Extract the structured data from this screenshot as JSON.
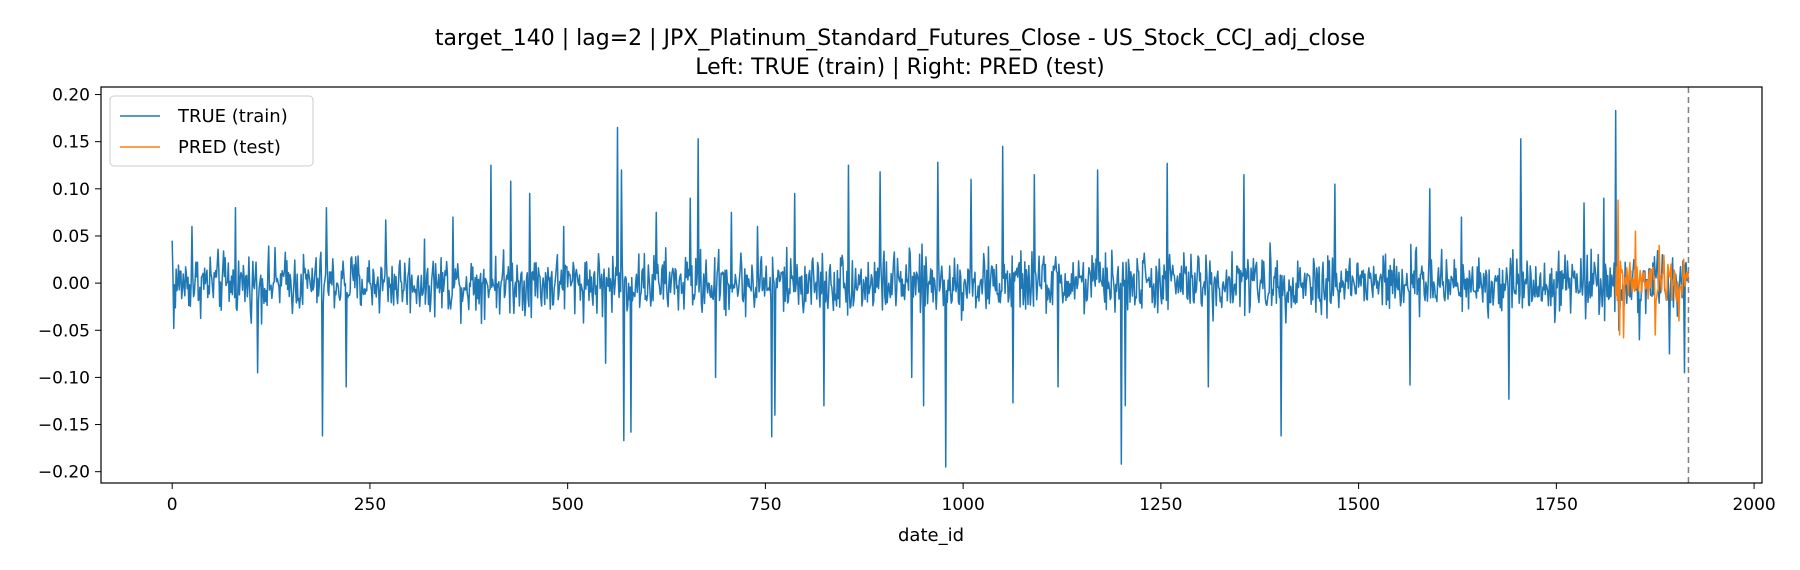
{
  "chart_data": {
    "type": "line",
    "title": "target_140 | lag=2 | JPX_Platinum_Standard_Futures_Close - US_Stock_CCJ_adj_close",
    "subtitle": "Left: TRUE (train) | Right: PRED (test)",
    "xlabel": "date_id",
    "ylabel": "",
    "xlim": [
      -90,
      2010
    ],
    "ylim": [
      -0.212,
      0.208
    ],
    "x_ticks": [
      0,
      250,
      500,
      750,
      1000,
      1250,
      1500,
      1750,
      2000
    ],
    "x_tick_labels": [
      "0",
      "250",
      "500",
      "750",
      "1000",
      "1250",
      "1500",
      "1750",
      "2000"
    ],
    "y_ticks": [
      0.2,
      0.15,
      0.1,
      0.05,
      0.0,
      -0.05,
      -0.1,
      -0.15,
      -0.2
    ],
    "y_tick_labels": [
      "0.20",
      "0.15",
      "0.10",
      "0.05",
      "0.00",
      "−0.05",
      "−0.10",
      "−0.15",
      "−0.20"
    ],
    "grid": false,
    "legend_position": "top-left",
    "vline": {
      "x": 1917,
      "style": "dashed",
      "color": "#808080"
    },
    "series": [
      {
        "name": "TRUE (train)",
        "color": "#1f77b4",
        "x_range": [
          0,
          1917
        ],
        "noise_amplitude": 0.03,
        "spikes": [
          [
            0,
            0.045
          ],
          [
            2,
            -0.048
          ],
          [
            25,
            0.06
          ],
          [
            80,
            0.08
          ],
          [
            108,
            -0.095
          ],
          [
            190,
            -0.162
          ],
          [
            195,
            0.08
          ],
          [
            220,
            -0.11
          ],
          [
            270,
            0.067
          ],
          [
            355,
            0.07
          ],
          [
            403,
            0.125
          ],
          [
            428,
            0.108
          ],
          [
            452,
            0.095
          ],
          [
            495,
            0.06
          ],
          [
            548,
            -0.085
          ],
          [
            563,
            0.165
          ],
          [
            568,
            0.12
          ],
          [
            571,
            -0.167
          ],
          [
            580,
            -0.158
          ],
          [
            612,
            0.075
          ],
          [
            655,
            0.09
          ],
          [
            665,
            0.153
          ],
          [
            687,
            -0.1
          ],
          [
            707,
            0.075
          ],
          [
            740,
            0.06
          ],
          [
            758,
            -0.163
          ],
          [
            762,
            -0.14
          ],
          [
            787,
            0.095
          ],
          [
            824,
            -0.13
          ],
          [
            855,
            0.125
          ],
          [
            895,
            0.118
          ],
          [
            935,
            -0.1
          ],
          [
            950,
            -0.13
          ],
          [
            968,
            0.128
          ],
          [
            978,
            -0.195
          ],
          [
            1010,
            0.11
          ],
          [
            1050,
            0.145
          ],
          [
            1063,
            -0.127
          ],
          [
            1090,
            0.115
          ],
          [
            1120,
            -0.11
          ],
          [
            1170,
            0.12
          ],
          [
            1200,
            -0.192
          ],
          [
            1205,
            -0.13
          ],
          [
            1258,
            0.127
          ],
          [
            1310,
            -0.11
          ],
          [
            1355,
            0.115
          ],
          [
            1402,
            -0.162
          ],
          [
            1470,
            0.105
          ],
          [
            1565,
            -0.108
          ],
          [
            1590,
            0.1
          ],
          [
            1630,
            0.07
          ],
          [
            1690,
            -0.123
          ],
          [
            1705,
            0.153
          ],
          [
            1785,
            0.085
          ],
          [
            1810,
            0.09
          ],
          [
            1825,
            0.183
          ],
          [
            1829,
            -0.05
          ],
          [
            1855,
            -0.06
          ],
          [
            1893,
            -0.075
          ],
          [
            1912,
            -0.095
          ]
        ]
      },
      {
        "name": "PRED (test)",
        "color": "#ff7f0e",
        "x_range": [
          1825,
          1917
        ],
        "noise_amplitude": 0.022,
        "spikes": [
          [
            1828,
            0.088
          ],
          [
            1830,
            -0.055
          ],
          [
            1835,
            -0.058
          ],
          [
            1850,
            0.055
          ],
          [
            1875,
            -0.055
          ],
          [
            1880,
            0.04
          ],
          [
            1895,
            0.02
          ],
          [
            1905,
            -0.04
          ]
        ]
      }
    ]
  }
}
